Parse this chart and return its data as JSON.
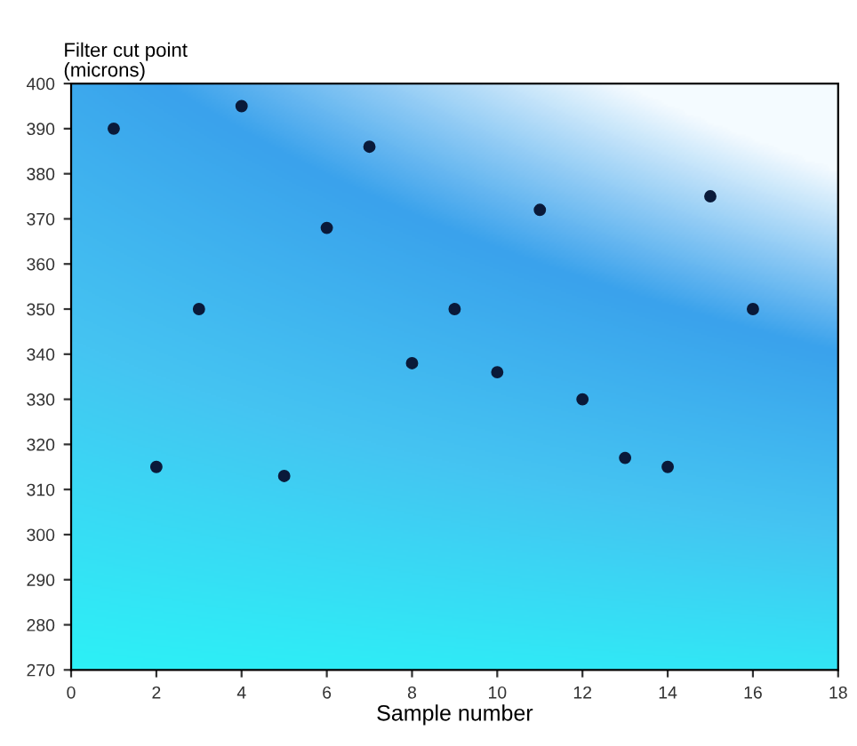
{
  "chart_data": {
    "type": "scatter",
    "ylabel": "Filter cut point\n(microns)",
    "xlabel": "Sample number",
    "x": [
      1,
      2,
      3,
      4,
      5,
      6,
      7,
      8,
      9,
      10,
      11,
      12,
      13,
      14,
      15,
      16
    ],
    "series": [
      {
        "color": "#0a1a3a",
        "values": [
          390,
          315,
          350,
          395,
          313,
          368,
          386,
          338,
          350,
          336,
          372,
          330,
          317,
          315,
          375,
          350
        ]
      }
    ],
    "xlim": [
      0,
      18
    ],
    "xticks": [
      0,
      2,
      4,
      6,
      8,
      10,
      12,
      14,
      16,
      18
    ],
    "ylim": [
      270,
      400
    ],
    "yticks": [
      270,
      280,
      290,
      300,
      310,
      320,
      330,
      340,
      350,
      360,
      370,
      380,
      390,
      400
    ],
    "grid": false
  }
}
